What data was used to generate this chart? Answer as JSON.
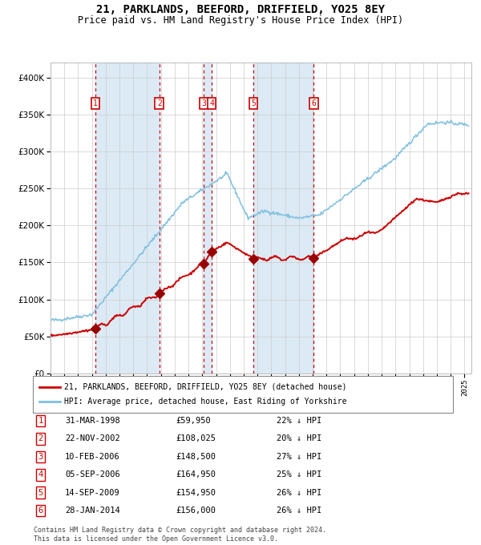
{
  "title": "21, PARKLANDS, BEEFORD, DRIFFIELD, YO25 8EY",
  "subtitle": "Price paid vs. HM Land Registry's House Price Index (HPI)",
  "title_fontsize": 10,
  "subtitle_fontsize": 8.5,
  "hpi_color": "#7fbfdf",
  "price_color": "#cc0000",
  "marker_color": "#990000",
  "vline_color": "#cc0000",
  "bg_band_color": "#dceaf5",
  "ylim": [
    0,
    420000
  ],
  "yticks": [
    0,
    50000,
    100000,
    150000,
    200000,
    250000,
    300000,
    350000,
    400000
  ],
  "xlim_start": 1995.0,
  "xlim_end": 2025.5,
  "transactions": [
    {
      "num": 1,
      "date_decimal": 1998.25,
      "price": 59950
    },
    {
      "num": 2,
      "date_decimal": 2002.89,
      "price": 108025
    },
    {
      "num": 3,
      "date_decimal": 2006.11,
      "price": 148500
    },
    {
      "num": 4,
      "date_decimal": 2006.68,
      "price": 164950
    },
    {
      "num": 5,
      "date_decimal": 2009.7,
      "price": 154950
    },
    {
      "num": 6,
      "date_decimal": 2014.08,
      "price": 156000
    }
  ],
  "legend_line1": "21, PARKLANDS, BEEFORD, DRIFFIELD, YO25 8EY (detached house)",
  "legend_line2": "HPI: Average price, detached house, East Riding of Yorkshire",
  "footer_line1": "Contains HM Land Registry data © Crown copyright and database right 2024.",
  "footer_line2": "This data is licensed under the Open Government Licence v3.0.",
  "table_rows": [
    {
      "num": 1,
      "label": "31-MAR-1998",
      "price": "£59,950",
      "pct": "22% ↓ HPI"
    },
    {
      "num": 2,
      "label": "22-NOV-2002",
      "price": "£108,025",
      "pct": "20% ↓ HPI"
    },
    {
      "num": 3,
      "label": "10-FEB-2006",
      "price": "£148,500",
      "pct": "27% ↓ HPI"
    },
    {
      "num": 4,
      "label": "05-SEP-2006",
      "price": "£164,950",
      "pct": "25% ↓ HPI"
    },
    {
      "num": 5,
      "label": "14-SEP-2009",
      "price": "£154,950",
      "pct": "26% ↓ HPI"
    },
    {
      "num": 6,
      "label": "28-JAN-2014",
      "price": "£156,000",
      "pct": "26% ↓ HPI"
    }
  ]
}
